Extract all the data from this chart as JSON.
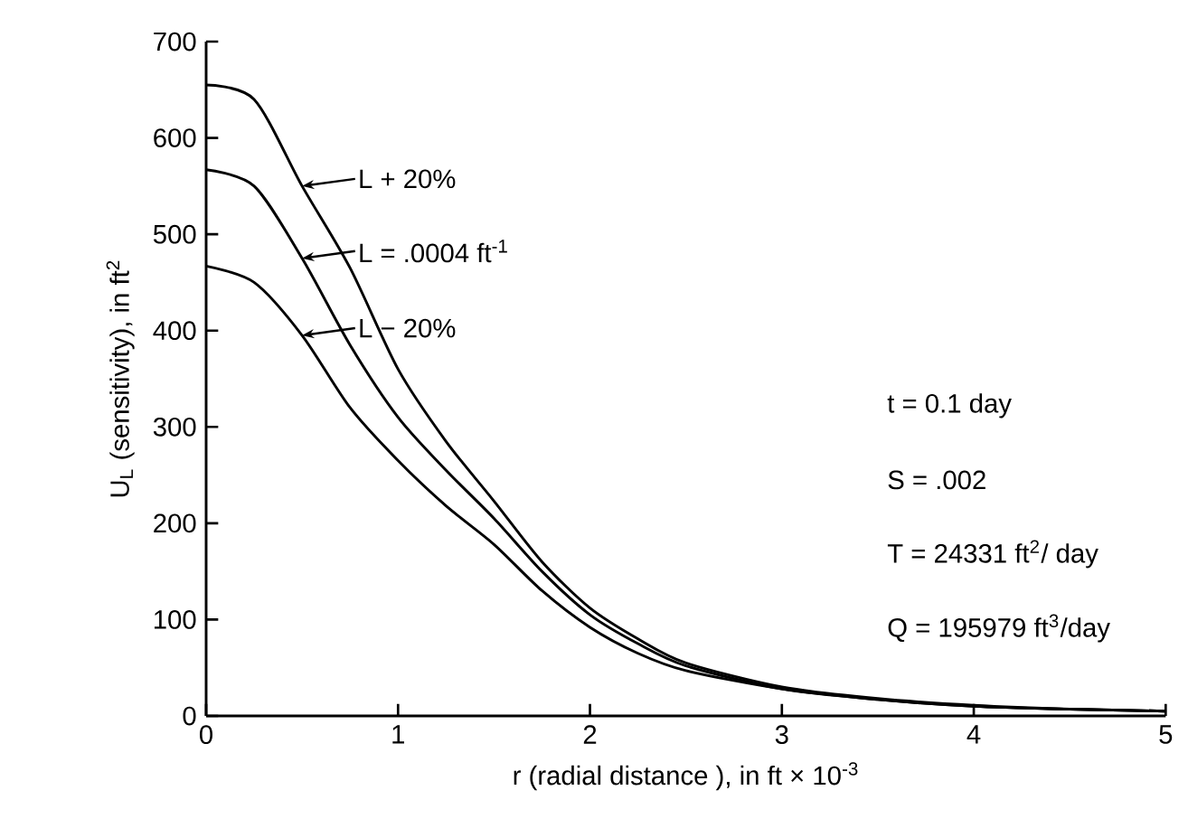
{
  "chart_data": {
    "type": "line",
    "xlabel": "r (radial distance ), in ft × 10$^{-3}$",
    "ylabel": "U$_{L}$ (sensitivity), in ft$^{2}$",
    "legend": "top left",
    "xlim": [
      0,
      5
    ],
    "ylim": [
      0,
      700
    ],
    "xticks": [
      0,
      1,
      2,
      3,
      4,
      5
    ],
    "yticks": [
      0,
      100,
      200,
      300,
      400,
      500,
      600,
      700
    ],
    "x": [
      0,
      0.25,
      0.5,
      0.75,
      1,
      1.25,
      1.5,
      1.75,
      2,
      2.25,
      2.5,
      3,
      3.5,
      4,
      4.5,
      5
    ],
    "series": [
      {
        "name": "L + 20%",
        "color": "#000000",
        "values": [
          655,
          640,
          550,
          465,
          360,
          285,
          223,
          160,
          112,
          80,
          55,
          30,
          18,
          11,
          7,
          5
        ]
      },
      {
        "name": "L = .0004 ft$^{-1}$",
        "color": "#000000",
        "values": [
          567,
          550,
          475,
          385,
          310,
          255,
          205,
          150,
          105,
          75,
          52,
          28,
          17,
          10,
          7,
          5
        ]
      },
      {
        "name": "L − 20%",
        "color": "#000000",
        "values": [
          467,
          450,
          395,
          320,
          265,
          218,
          178,
          130,
          92,
          65,
          47,
          28,
          17,
          10,
          7,
          5
        ]
      }
    ],
    "annotations": [
      "t = 0.1 day",
      "S = .002",
      "T = 24331 ft$^{2}$/ day",
      "Q = 195979 ft$^{3}$/day"
    ]
  }
}
